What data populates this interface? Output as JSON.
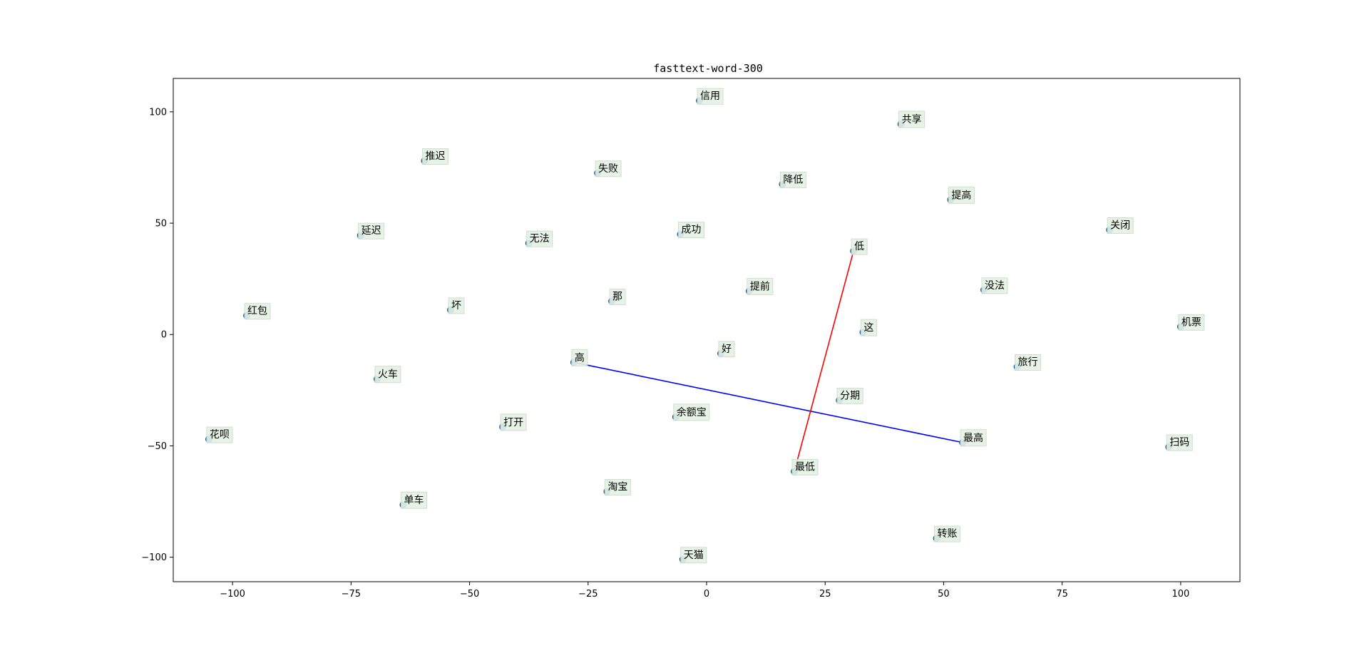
{
  "chart_data": {
    "type": "scatter",
    "title": "fasttext-word-300",
    "xlabel": "",
    "ylabel": "",
    "xlim": [
      -112.5,
      112.5
    ],
    "ylim": [
      -111,
      115
    ],
    "xticks": [
      -100,
      -75,
      -50,
      -25,
      0,
      25,
      50,
      75,
      100
    ],
    "yticks": [
      -100,
      -50,
      0,
      50,
      100
    ],
    "xtick_labels": [
      "−100",
      "−75",
      "−50",
      "−25",
      "0",
      "25",
      "50",
      "75",
      "100"
    ],
    "ytick_labels": [
      "−100",
      "−50",
      "0",
      "50",
      "100"
    ],
    "grid": false,
    "marker_color": "#1f77b4",
    "label_box_color": "#e6f2e6",
    "points": [
      {
        "label": "信用",
        "x": -1.5,
        "y": 105
      },
      {
        "label": "共享",
        "x": 41,
        "y": 94.5
      },
      {
        "label": "推迟",
        "x": -59.5,
        "y": 78
      },
      {
        "label": "失败",
        "x": -23,
        "y": 72.5
      },
      {
        "label": "降低",
        "x": 16,
        "y": 67.5
      },
      {
        "label": "提高",
        "x": 51.5,
        "y": 60.5
      },
      {
        "label": "延迟",
        "x": -73,
        "y": 44.5
      },
      {
        "label": "无法",
        "x": -37.5,
        "y": 41
      },
      {
        "label": "成功",
        "x": -5.5,
        "y": 45
      },
      {
        "label": "关闭",
        "x": 85,
        "y": 47
      },
      {
        "label": "低",
        "x": 31,
        "y": 37.5
      },
      {
        "label": "提前",
        "x": 9,
        "y": 19.5
      },
      {
        "label": "没法",
        "x": 58.5,
        "y": 20
      },
      {
        "label": "红包",
        "x": -97,
        "y": 8.5
      },
      {
        "label": "坏",
        "x": -54,
        "y": 11
      },
      {
        "label": "那",
        "x": -20,
        "y": 15
      },
      {
        "label": "这",
        "x": 33,
        "y": 1
      },
      {
        "label": "机票",
        "x": 100,
        "y": 3.5
      },
      {
        "label": "好",
        "x": 3,
        "y": -8.5
      },
      {
        "label": "高",
        "x": -28,
        "y": -12.5
      },
      {
        "label": "旅行",
        "x": 65.5,
        "y": -14.5
      },
      {
        "label": "火车",
        "x": -69.5,
        "y": -20
      },
      {
        "label": "分期",
        "x": 28,
        "y": -29.5
      },
      {
        "label": "余额宝",
        "x": -6.5,
        "y": -37
      },
      {
        "label": "打开",
        "x": -43,
        "y": -41.5
      },
      {
        "label": "花呗",
        "x": -105,
        "y": -47
      },
      {
        "label": "最高",
        "x": 54,
        "y": -48.5
      },
      {
        "label": "扫码",
        "x": 97.5,
        "y": -50.5
      },
      {
        "label": "最低",
        "x": 18.5,
        "y": -61.5
      },
      {
        "label": "淘宝",
        "x": -21,
        "y": -70.5
      },
      {
        "label": "单车",
        "x": -64,
        "y": -76.5
      },
      {
        "label": "转账",
        "x": 48.5,
        "y": -91.5
      },
      {
        "label": "天猫",
        "x": -5,
        "y": -101
      }
    ],
    "lines": [
      {
        "from": "高",
        "to": "最高",
        "color": "#0000ff"
      },
      {
        "from": "最低",
        "to": "低",
        "color": "#ff0000"
      }
    ]
  }
}
